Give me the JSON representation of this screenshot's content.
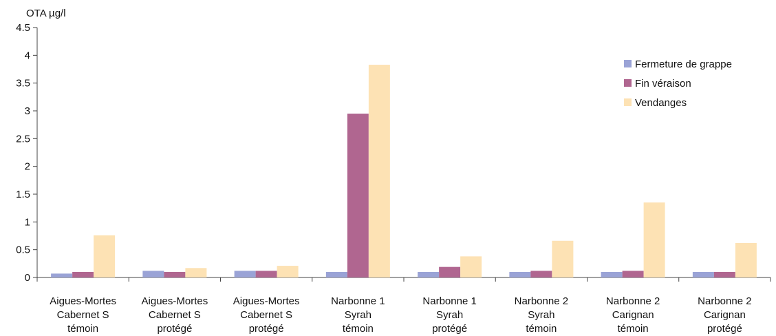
{
  "chart_data": {
    "type": "bar",
    "title": "",
    "ylabel": "OTA µg/l",
    "xlabel": "",
    "ylim": [
      0,
      4.5
    ],
    "yticks": [
      "0",
      "0.5",
      "1",
      "1.5",
      "2",
      "2.5",
      "3",
      "3.5",
      "4",
      "4.5"
    ],
    "grid": false,
    "legend_position": "top-right",
    "categories": [
      [
        "Aigues-Mortes",
        "Cabernet S",
        "témoin"
      ],
      [
        "Aigues-Mortes",
        "Cabernet S",
        "protégé"
      ],
      [
        "Aigues-Mortes",
        "Cabernet S",
        "protégé"
      ],
      [
        "Narbonne 1",
        "Syrah",
        "témoin"
      ],
      [
        "Narbonne 1",
        "Syrah",
        "protégé"
      ],
      [
        "Narbonne 2",
        "Syrah",
        "témoin"
      ],
      [
        "Narbonne 2",
        "Carignan",
        "témoin"
      ],
      [
        "Narbonne 2",
        "Carignan",
        "protégé"
      ]
    ],
    "series": [
      {
        "name": "Fermeture de grappe",
        "color": "#9aa3d6",
        "values": [
          0.07,
          0.12,
          0.12,
          0.1,
          0.1,
          0.1,
          0.1,
          0.1
        ]
      },
      {
        "name": "Fin véraison",
        "color": "#b06690",
        "values": [
          0.1,
          0.1,
          0.12,
          2.95,
          0.19,
          0.12,
          0.12,
          0.1
        ]
      },
      {
        "name": "Vendanges",
        "color": "#fde2b4",
        "values": [
          0.76,
          0.17,
          0.21,
          3.83,
          0.38,
          0.66,
          1.35,
          0.62
        ]
      }
    ]
  }
}
